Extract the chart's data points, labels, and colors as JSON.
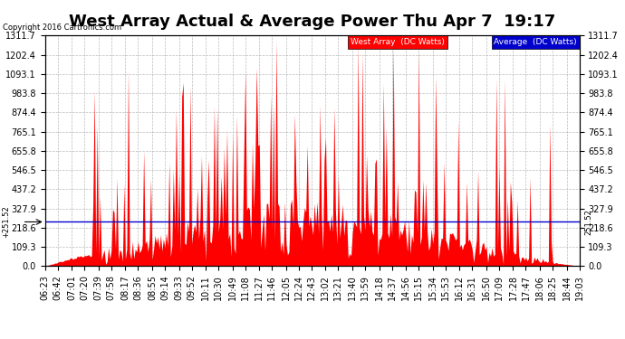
{
  "title": "West Array Actual & Average Power Thu Apr 7  19:17",
  "copyright": "Copyright 2016 Cartronics.com",
  "legend_avg": "Average  (DC Watts)",
  "legend_west": "West Array  (DC Watts)",
  "avg_line_value": 251.52,
  "ytick_labels": [
    "0.0",
    "109.3",
    "218.6",
    "327.9",
    "437.2",
    "546.5",
    "655.8",
    "765.1",
    "874.4",
    "983.8",
    "1093.1",
    "1202.4",
    "1311.7"
  ],
  "ytick_values": [
    0.0,
    109.3,
    218.6,
    327.9,
    437.2,
    546.5,
    655.8,
    765.1,
    874.4,
    983.8,
    1093.1,
    1202.4,
    1311.7
  ],
  "ymax": 1311.7,
  "ymin": 0.0,
  "background_color": "#ffffff",
  "plot_bg_color": "#ffffff",
  "grid_color": "#aaaaaa",
  "fill_color": "#ff0000",
  "avg_line_color": "#0000cc",
  "title_fontsize": 13,
  "tick_fontsize": 7,
  "legend_fontsize": 7
}
